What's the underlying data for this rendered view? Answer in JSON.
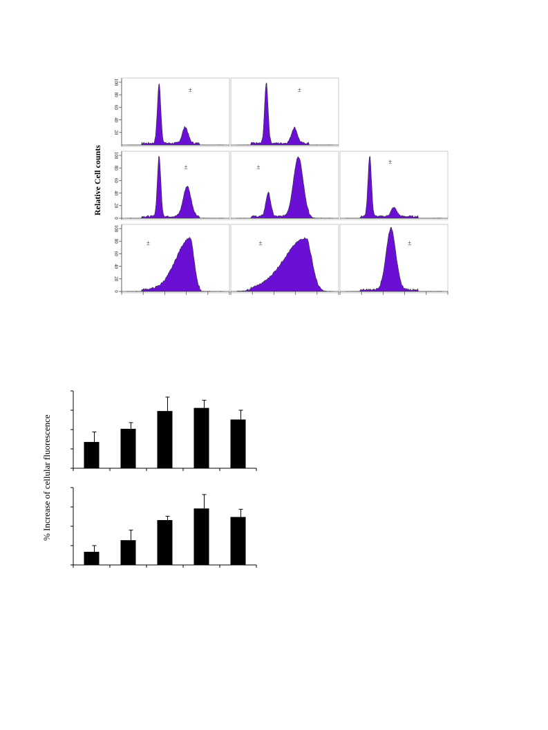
{
  "chart_data": [
    {
      "type": "histogram-grid",
      "ylabel": "Relative Cell counts",
      "yticks": [
        "0",
        "20",
        "40",
        "60",
        "80",
        "100"
      ],
      "panel_yticks": [
        [
          "20",
          "40",
          "60",
          "80",
          "100"
        ],
        [
          "0",
          "20",
          "40",
          "60",
          "80",
          "100"
        ],
        [
          "0",
          "20",
          "40",
          "60",
          "80",
          "100"
        ]
      ],
      "fill_color": "#6a0fd4",
      "panels": [
        {
          "row": 0,
          "col": 0,
          "marker": "±",
          "peaks": [
            {
              "x": 0.33,
              "h": 0.95,
              "w": 0.018
            },
            {
              "x": 0.6,
              "h": 0.26,
              "w": 0.03
            }
          ]
        },
        {
          "row": 0,
          "col": 1,
          "marker": "±",
          "peaks": [
            {
              "x": 0.31,
              "h": 0.97,
              "w": 0.018
            },
            {
              "x": 0.6,
              "h": 0.25,
              "w": 0.03
            }
          ]
        },
        {
          "row": 1,
          "col": 0,
          "marker": "±",
          "peaks": [
            {
              "x": 0.33,
              "h": 0.96,
              "w": 0.018
            },
            {
              "x": 0.62,
              "h": 0.48,
              "w": 0.04
            }
          ]
        },
        {
          "row": 1,
          "col": 1,
          "marker": "±",
          "peaks": [
            {
              "x": 0.33,
              "h": 0.38,
              "w": 0.025
            },
            {
              "x": 0.64,
              "h": 0.95,
              "w": 0.05
            }
          ]
        },
        {
          "row": 1,
          "col": 2,
          "marker": "±",
          "peaks": [
            {
              "x": 0.25,
              "h": 0.97,
              "w": 0.018
            },
            {
              "x": 0.5,
              "h": 0.14,
              "w": 0.03
            }
          ]
        },
        {
          "row": 2,
          "col": 0,
          "marker": "±",
          "peaks": [
            {
              "x": 0.65,
              "h": 0.82,
              "w": 0.09
            }
          ]
        },
        {
          "row": 2,
          "col": 1,
          "marker": "±",
          "peaks": [
            {
              "x": 0.72,
              "h": 0.82,
              "w": 0.14
            }
          ]
        },
        {
          "row": 2,
          "col": 2,
          "marker": "±",
          "peaks": [
            {
              "x": 0.47,
              "h": 0.98,
              "w": 0.05
            }
          ]
        }
      ]
    },
    {
      "type": "bar",
      "ylabel": "% Increase of cellular fluorescence",
      "charts": [
        {
          "values": [
            34,
            51,
            74,
            78,
            63
          ],
          "errors": [
            13,
            8,
            18,
            10,
            12
          ],
          "ymax": 100
        },
        {
          "values": [
            17,
            32,
            58,
            73,
            62
          ],
          "errors": [
            8,
            13,
            5,
            18,
            10
          ],
          "ymax": 100
        }
      ]
    }
  ]
}
